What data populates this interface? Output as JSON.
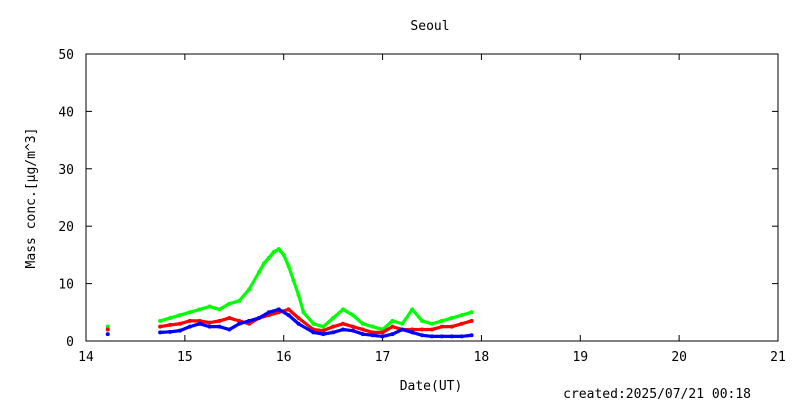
{
  "chart_data": {
    "type": "scatter",
    "title": "Seoul",
    "xlabel": "Date(UT)",
    "ylabel": "Mass conc.[μg/m^3]",
    "footer": "created:2025/07/21 00:18",
    "xlim": [
      14,
      21
    ],
    "ylim": [
      0,
      50
    ],
    "xticks": [
      14,
      15,
      16,
      17,
      18,
      19,
      20,
      21
    ],
    "yticks": [
      0,
      10,
      20,
      30,
      40,
      50
    ],
    "grid": false,
    "legend": "none",
    "series": [
      {
        "color": "#00ff00",
        "x": [
          14.22,
          14.75,
          14.85,
          14.95,
          15.05,
          15.15,
          15.25,
          15.35,
          15.45,
          15.55,
          15.65,
          15.75,
          15.8,
          15.85,
          15.9,
          15.95,
          16.0,
          16.05,
          16.1,
          16.15,
          16.2,
          16.3,
          16.4,
          16.5,
          16.6,
          16.7,
          16.8,
          16.9,
          17.0,
          17.1,
          17.2,
          17.3,
          17.4,
          17.5,
          17.6,
          17.7,
          17.8,
          17.9
        ],
        "y": [
          2.5,
          3.5,
          4.0,
          4.5,
          5.0,
          5.5,
          6.0,
          5.5,
          6.5,
          7.0,
          9.0,
          12.0,
          13.5,
          14.5,
          15.5,
          16.0,
          15.0,
          13.0,
          10.5,
          8.0,
          5.0,
          3.0,
          2.5,
          4.0,
          5.5,
          4.5,
          3.0,
          2.5,
          2.0,
          3.5,
          3.0,
          5.5,
          3.5,
          3.0,
          3.5,
          4.0,
          4.5,
          5.0
        ]
      },
      {
        "color": "#ff0000",
        "x": [
          14.22,
          14.75,
          14.85,
          14.95,
          15.05,
          15.15,
          15.25,
          15.35,
          15.45,
          15.55,
          15.65,
          15.75,
          15.85,
          15.95,
          16.05,
          16.15,
          16.3,
          16.4,
          16.5,
          16.6,
          16.7,
          16.8,
          16.9,
          17.0,
          17.1,
          17.2,
          17.3,
          17.4,
          17.5,
          17.6,
          17.7,
          17.8,
          17.9
        ],
        "y": [
          2.0,
          2.5,
          2.8,
          3.0,
          3.5,
          3.5,
          3.2,
          3.5,
          4.0,
          3.5,
          3.0,
          4.0,
          4.5,
          5.0,
          5.5,
          4.0,
          2.0,
          1.8,
          2.5,
          3.0,
          2.5,
          2.0,
          1.5,
          1.5,
          2.5,
          2.0,
          2.0,
          2.0,
          2.0,
          2.5,
          2.5,
          3.0,
          3.5
        ]
      },
      {
        "color": "#0000ff",
        "x": [
          14.22,
          14.75,
          14.85,
          14.95,
          15.05,
          15.15,
          15.25,
          15.35,
          15.45,
          15.55,
          15.65,
          15.75,
          15.85,
          15.95,
          16.05,
          16.15,
          16.3,
          16.4,
          16.5,
          16.6,
          16.7,
          16.8,
          16.9,
          17.0,
          17.1,
          17.2,
          17.3,
          17.4,
          17.5,
          17.6,
          17.7,
          17.8,
          17.9
        ],
        "y": [
          1.2,
          1.5,
          1.6,
          1.8,
          2.5,
          3.0,
          2.5,
          2.5,
          2.0,
          3.0,
          3.5,
          4.0,
          5.0,
          5.5,
          4.5,
          3.0,
          1.5,
          1.2,
          1.5,
          2.0,
          1.8,
          1.2,
          1.0,
          0.8,
          1.2,
          2.0,
          1.5,
          1.0,
          0.8,
          0.8,
          0.8,
          0.8,
          1.0
        ]
      }
    ]
  }
}
